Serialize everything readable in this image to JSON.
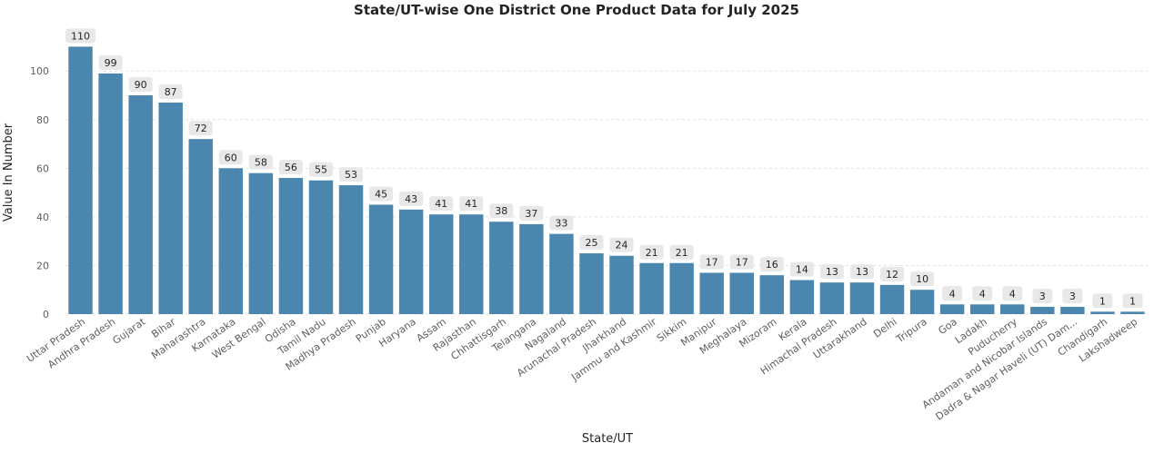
{
  "chart_data": {
    "type": "bar",
    "title": "State/UT-wise One District One Product Data for July 2025",
    "xlabel": "State/UT",
    "ylabel": "Value In Number",
    "ylim": [
      0,
      118
    ],
    "yticks": [
      0,
      20,
      40,
      60,
      80,
      100
    ],
    "grid": true,
    "bar_color": "#4a86ad",
    "categories": [
      "Uttar Pradesh",
      "Andhra Pradesh",
      "Gujarat",
      "Bihar",
      "Maharashtra",
      "Karnataka",
      "West Bengal",
      "Odisha",
      "Tamil Nadu",
      "Madhya Pradesh",
      "Punjab",
      "Haryana",
      "Assam",
      "Rajasthan",
      "Chhattisgarh",
      "Telangana",
      "Nagaland",
      "Arunachal Pradesh",
      "Jharkhand",
      "Jammu and Kashmir",
      "Sikkim",
      "Manipur",
      "Meghalaya",
      "Mizoram",
      "Kerala",
      "Himachal Pradesh",
      "Uttarakhand",
      "Delhi",
      "Tripura",
      "Goa",
      "Ladakh",
      "Puducherry",
      "Andaman and Nicobar Islands",
      "Dadra & Nagar Haveli (UT) Dam...",
      "Chandigarh",
      "Lakshadweep"
    ],
    "values": [
      110,
      99,
      90,
      87,
      72,
      60,
      58,
      56,
      55,
      53,
      45,
      43,
      41,
      41,
      38,
      37,
      33,
      25,
      24,
      21,
      21,
      17,
      17,
      16,
      14,
      13,
      13,
      12,
      10,
      4,
      4,
      4,
      3,
      3,
      1,
      1
    ]
  }
}
